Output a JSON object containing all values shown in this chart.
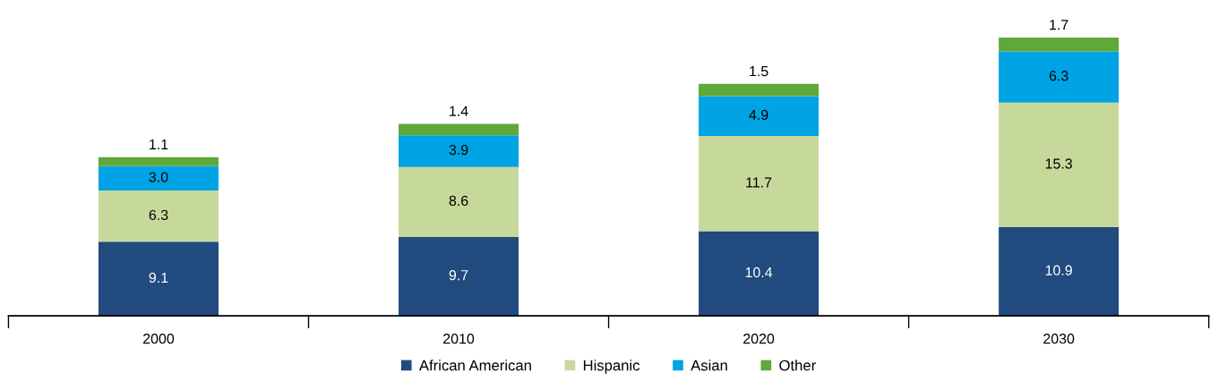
{
  "chart_data": {
    "type": "bar",
    "stacked": true,
    "data_labels": true,
    "legend": "bottom",
    "grid": false,
    "categories": [
      "2000",
      "2010",
      "2020",
      "2030"
    ],
    "series": [
      {
        "name": "African American",
        "color": "#214a7e",
        "values": [
          9.1,
          9.7,
          10.4,
          10.9
        ]
      },
      {
        "name": "Hispanic",
        "color": "#c7d99a",
        "values": [
          6.3,
          8.6,
          11.7,
          15.3
        ]
      },
      {
        "name": "Asian",
        "color": "#00a3e4",
        "values": [
          3.0,
          3.9,
          4.9,
          6.3
        ],
        "value_labels": [
          "3.0",
          "3.9",
          "4.9",
          "6.3"
        ]
      },
      {
        "name": "Other",
        "color": "#5fa83a",
        "values": [
          1.1,
          1.4,
          1.5,
          1.7
        ]
      }
    ]
  }
}
